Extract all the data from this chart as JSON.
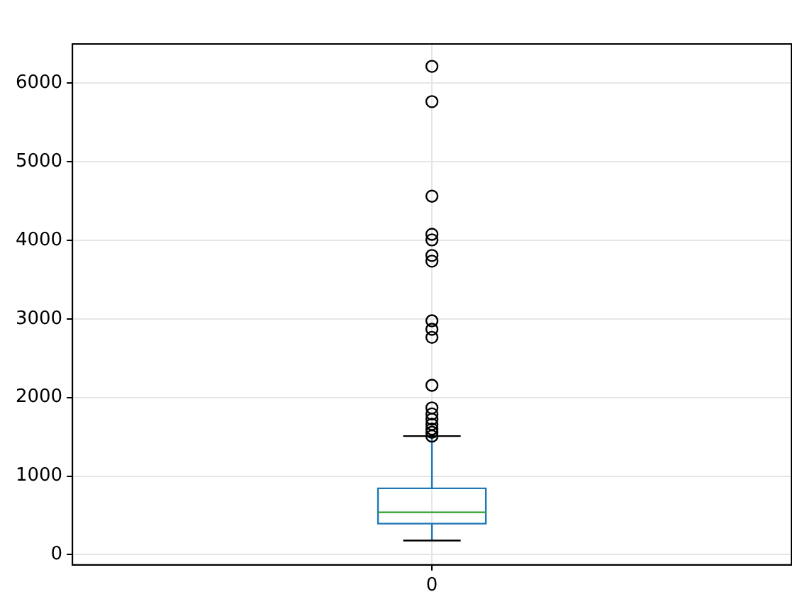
{
  "chart_data": {
    "type": "box",
    "categories": [
      "0"
    ],
    "boxes": [
      {
        "low": 180,
        "q1": 395,
        "median": 539,
        "q3": 844,
        "high": 1509,
        "outliers": [
          6215,
          5766,
          4563,
          4078,
          4006,
          3808,
          3736,
          2976,
          2868,
          2766,
          2156,
          1868,
          1791,
          1725,
          1659,
          1599,
          1558,
          1509
        ]
      }
    ],
    "ylim": [
      -130,
      6500
    ],
    "yticks": [
      0,
      1000,
      2000,
      3000,
      4000,
      5000,
      6000
    ],
    "grid": true
  }
}
